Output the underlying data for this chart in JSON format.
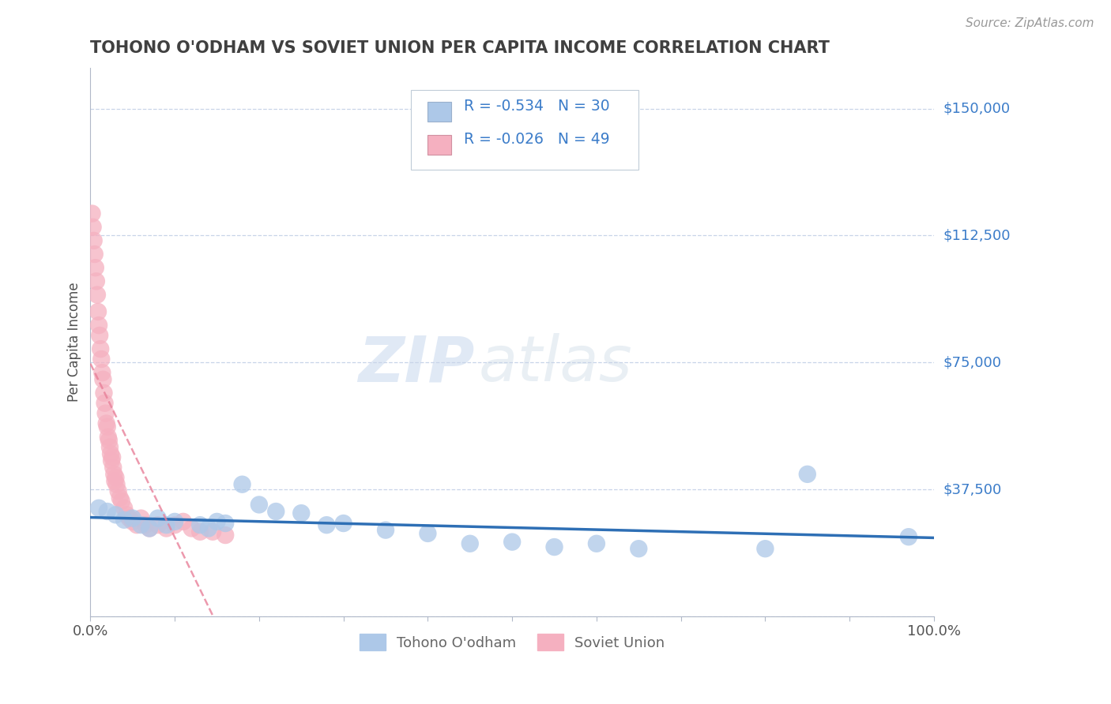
{
  "title": "TOHONO O'ODHAM VS SOVIET UNION PER CAPITA INCOME CORRELATION CHART",
  "source_text": "Source: ZipAtlas.com",
  "ylabel": "Per Capita Income",
  "xlim": [
    0.0,
    1.0
  ],
  "ylim": [
    0,
    162000
  ],
  "yticks": [
    0,
    37500,
    75000,
    112500,
    150000
  ],
  "ytick_labels": [
    "",
    "$37,500",
    "$75,000",
    "$112,500",
    "$150,000"
  ],
  "xtick_positions": [
    0.0,
    0.1,
    0.2,
    0.3,
    0.4,
    0.5,
    0.6,
    0.7,
    0.8,
    0.9,
    1.0
  ],
  "xtick_labels_show": [
    "0.0%",
    "",
    "",
    "",
    "",
    "",
    "",
    "",
    "",
    "",
    "100.0%"
  ],
  "watermark_zip": "ZIP",
  "watermark_atlas": "atlas",
  "legend_text1": "R = -0.534   N = 30",
  "legend_text2": "R = -0.026   N = 49",
  "legend_label1": "Tohono O'odham",
  "legend_label2": "Soviet Union",
  "blue_color": "#adc8e8",
  "pink_color": "#f5b0c0",
  "blue_line_color": "#2e6fb5",
  "pink_line_color": "#e88099",
  "grid_color": "#c8d4e8",
  "title_color": "#404040",
  "right_label_color": "#3b7cc9",
  "legend_text_color": "#3b7cc9",
  "tohono_x": [
    0.01,
    0.02,
    0.03,
    0.04,
    0.05,
    0.06,
    0.07,
    0.08,
    0.09,
    0.1,
    0.13,
    0.14,
    0.15,
    0.16,
    0.18,
    0.2,
    0.22,
    0.25,
    0.28,
    0.3,
    0.35,
    0.4,
    0.45,
    0.5,
    0.55,
    0.6,
    0.65,
    0.8,
    0.85,
    0.97
  ],
  "tohono_y": [
    32000,
    31000,
    30000,
    28500,
    29000,
    27000,
    26000,
    29000,
    27000,
    28000,
    27000,
    26000,
    28000,
    27500,
    39000,
    33000,
    31000,
    30500,
    27000,
    27500,
    25500,
    24500,
    21500,
    22000,
    20500,
    21500,
    20000,
    20000,
    42000,
    23500
  ],
  "soviet_x": [
    0.002,
    0.003,
    0.004,
    0.005,
    0.006,
    0.007,
    0.008,
    0.009,
    0.01,
    0.011,
    0.012,
    0.013,
    0.014,
    0.015,
    0.016,
    0.017,
    0.018,
    0.019,
    0.02,
    0.021,
    0.022,
    0.023,
    0.024,
    0.025,
    0.026,
    0.027,
    0.028,
    0.029,
    0.03,
    0.031,
    0.033,
    0.035,
    0.037,
    0.04,
    0.043,
    0.046,
    0.05,
    0.055,
    0.06,
    0.065,
    0.07,
    0.08,
    0.09,
    0.1,
    0.11,
    0.12,
    0.13,
    0.145,
    0.16
  ],
  "soviet_y": [
    119000,
    115000,
    111000,
    107000,
    103000,
    99000,
    95000,
    90000,
    86000,
    83000,
    79000,
    76000,
    72000,
    70000,
    66000,
    63000,
    60000,
    57000,
    56000,
    53000,
    52000,
    50000,
    48000,
    46000,
    47000,
    44000,
    42000,
    40000,
    41000,
    39000,
    37000,
    35000,
    34000,
    32000,
    30000,
    29000,
    28000,
    27000,
    29000,
    27000,
    26000,
    27000,
    26000,
    27000,
    28000,
    26000,
    25000,
    25000,
    24000
  ]
}
